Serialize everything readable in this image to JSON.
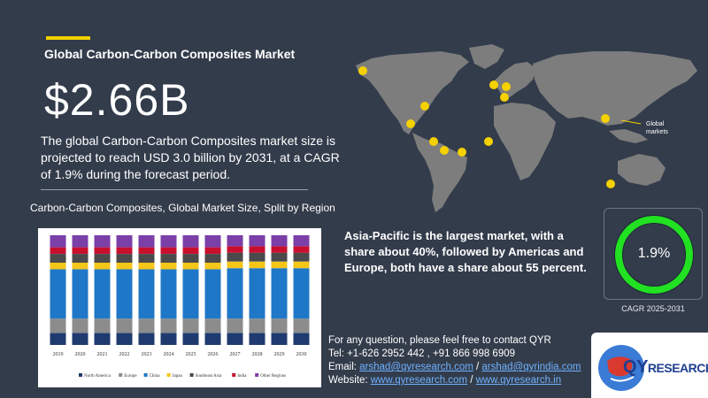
{
  "header": {
    "title": "Global Carbon-Carbon Composites Market",
    "value": "$2.66B",
    "summary": "The global Carbon-Carbon Composites market size is projected to reach USD 3.0 billion by 2031, at a CAGR of 1.9% during the forecast period."
  },
  "chart_title": "Carbon-Carbon Composites, Global Market Size, Split by Region",
  "colors": {
    "background": "#333c4b",
    "accent": "#f2d100",
    "map_land": "#7d7d7d",
    "marker": "#f5d100",
    "donut_ring": "#22e022",
    "link": "#6fb2ff",
    "logo_blue": "#1f3f8f"
  },
  "chart_data": {
    "type": "bar",
    "stacked": true,
    "percent": true,
    "categories": [
      "2019",
      "2020",
      "2021",
      "2022",
      "2023",
      "2024",
      "2025",
      "2026",
      "2027",
      "2028",
      "2029",
      "2030"
    ],
    "series": [
      {
        "name": "North America",
        "color": "#1f3a6e",
        "values": [
          11,
          11,
          11,
          11,
          11,
          11,
          11,
          11,
          11,
          11,
          11,
          11
        ]
      },
      {
        "name": "Europe",
        "color": "#8c8c8c",
        "values": [
          13,
          13,
          13,
          13,
          13,
          13,
          13,
          13,
          13,
          13,
          13,
          13
        ]
      },
      {
        "name": "China",
        "color": "#1f77c7",
        "values": [
          45,
          45,
          45,
          45,
          45,
          45,
          45,
          45,
          46,
          46,
          46,
          46
        ]
      },
      {
        "name": "Japan",
        "color": "#f5c518",
        "values": [
          6,
          6,
          6,
          6,
          6,
          6,
          6,
          6,
          6,
          6,
          6,
          6
        ]
      },
      {
        "name": "Southeast Asia",
        "color": "#4a4a4a",
        "values": [
          8,
          8,
          8,
          8,
          8,
          8,
          8,
          8,
          8,
          8,
          8,
          8
        ]
      },
      {
        "name": "India",
        "color": "#c8102e",
        "values": [
          6,
          6,
          6,
          6,
          6,
          6,
          6,
          6,
          6,
          6,
          6,
          6
        ]
      },
      {
        "name": "Other Regions",
        "color": "#7b3fa8",
        "values": [
          11,
          11,
          11,
          11,
          11,
          11,
          11,
          11,
          10,
          10,
          10,
          10
        ]
      }
    ],
    "ylim": [
      0,
      100
    ],
    "grid": false,
    "legend": "bottom"
  },
  "map": {
    "global_label": "Global markets"
  },
  "insight": "Asia-Pacific is the largest market, with a share about 40%, followed by Americas and Europe, both have a share about 55 percent.",
  "cagr": {
    "value": "1.9%",
    "label": "CAGR 2025-2031",
    "ring_fraction": 1.0
  },
  "contact": {
    "line1": "For any question, please feel free to contact QYR",
    "tel": "Tel: +1-626 2952 442 , +91 866 998 6909",
    "email_prefix": "Email: ",
    "email1": "arshad@qyresearch.com",
    "email_sep": " / ",
    "email2": "arshad@qyrindia.com",
    "website_prefix": "Website: ",
    "web1": "www.qyresearch.com",
    "web_sep": " / ",
    "web2": "www.qyresearch.in"
  },
  "logo": {
    "q": "Q",
    "y": "Y",
    "rest": "RESEARCH"
  }
}
